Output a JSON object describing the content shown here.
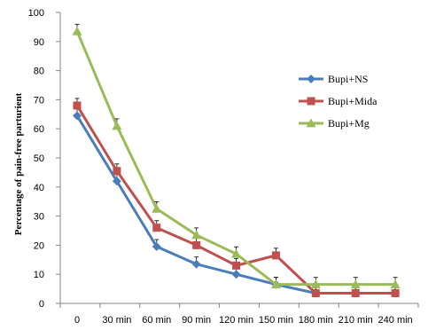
{
  "chart_data": {
    "type": "line",
    "ylabel": "Percentage of pain-free parturient",
    "xlabel": "",
    "title": "",
    "ylim": [
      0,
      100
    ],
    "yticks": [
      0,
      10,
      20,
      30,
      40,
      50,
      60,
      70,
      80,
      90,
      100
    ],
    "categories": [
      "0",
      "30 min",
      "60 min",
      "90 min",
      "120 min",
      "150 min",
      "180 min",
      "210 min",
      "240 min"
    ],
    "grid": false,
    "legend_position": "right",
    "series": [
      {
        "name": "Bupi+NS",
        "color": "#4a7ebb",
        "marker": "diamond",
        "values": [
          64.5,
          42,
          19.5,
          13.5,
          10,
          6.5,
          3.5,
          3.5,
          3.5
        ]
      },
      {
        "name": "Bupi+Mida",
        "color": "#c0504d",
        "marker": "square",
        "values": [
          68,
          45.5,
          26,
          20,
          13,
          16.5,
          3.5,
          3.5,
          3.5
        ]
      },
      {
        "name": "Bupi+Mg",
        "color": "#9bbb59",
        "marker": "triangle",
        "values": [
          93.5,
          61,
          32.5,
          23.5,
          17,
          6.5,
          6.5,
          6.5,
          6.5
        ]
      }
    ]
  }
}
